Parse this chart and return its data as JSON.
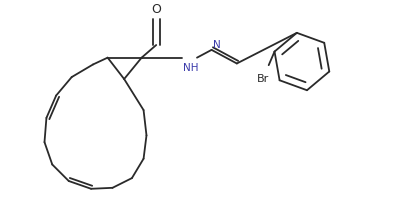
{
  "background_color": "#ffffff",
  "line_color": "#2a2a2a",
  "lw": 1.3,
  "fig_width": 3.94,
  "fig_height": 2.07,
  "dpi": 100,
  "xlim": [
    0,
    3.94
  ],
  "ylim": [
    0,
    2.07
  ]
}
